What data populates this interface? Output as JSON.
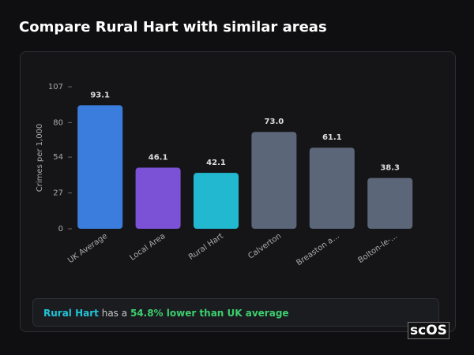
{
  "header": {
    "title": "Compare Rural Hart with similar areas"
  },
  "chart_data": {
    "type": "bar",
    "y_label": "Crimes per 1,000",
    "categories": [
      "UK Average",
      "Local Area",
      "Rural Hart",
      "Calverton",
      "Breaston a...",
      "Bolton-le-..."
    ],
    "values": [
      93.1,
      46.1,
      42.1,
      73.0,
      61.1,
      38.3
    ],
    "value_labels": [
      "93.1",
      "46.1",
      "42.1",
      "73.0",
      "61.1",
      "38.3"
    ],
    "colors": [
      "#3b7ddd",
      "#7b52d6",
      "#22b8cf",
      "#5b6678",
      "#5b6678",
      "#5b6678"
    ],
    "ylim": [
      0,
      107
    ],
    "yticks": [
      0,
      27,
      54,
      80,
      107
    ]
  },
  "note": {
    "area": "Rural Hart",
    "text": "has a",
    "highlight": "54.8% lower than UK average"
  },
  "logo": "scOS"
}
